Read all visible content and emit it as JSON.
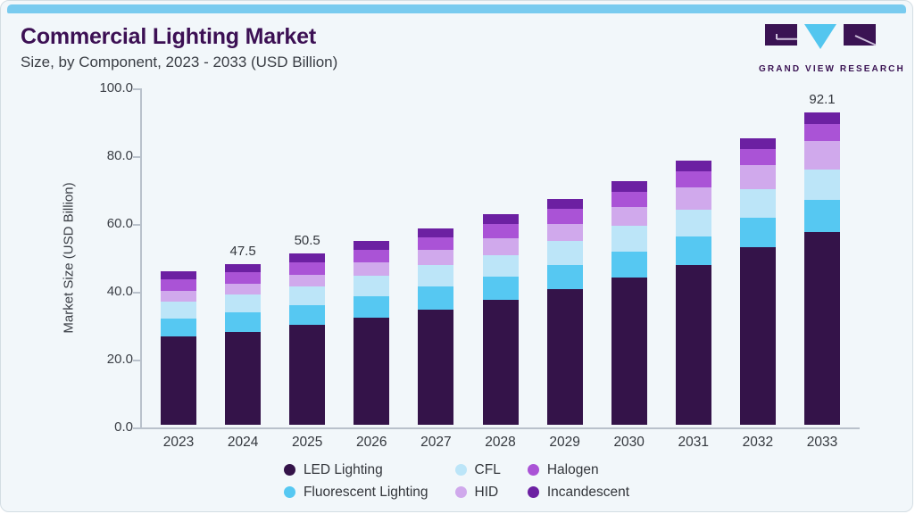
{
  "header": {
    "title": "Commercial Lighting Market",
    "subtitle": "Size, by Component, 2023 - 2033 (USD Billion)",
    "logo_text": "GRAND VIEW RESEARCH"
  },
  "colors": {
    "accent_bar": "#79cbef",
    "card_background": "#f2f7fa",
    "card_border": "#d3dde3",
    "title": "#3c1054",
    "axis": "#b9c1cb",
    "logo_purple": "#3a1353",
    "logo_blue": "#53c6ef"
  },
  "chart_data": {
    "type": "bar",
    "stacked": true,
    "title": "Commercial Lighting Market Size, by Component, 2023 - 2033 (USD Billion)",
    "categories": [
      "2023",
      "2024",
      "2025",
      "2026",
      "2027",
      "2028",
      "2029",
      "2030",
      "2031",
      "2032",
      "2033"
    ],
    "series": [
      {
        "name": "LED Lighting",
        "color": "#341349",
        "values": [
          26.1,
          27.5,
          29.5,
          31.7,
          34.0,
          36.9,
          39.9,
          43.3,
          47.2,
          52.4,
          56.8
        ]
      },
      {
        "name": "Fluorescent Lighting",
        "color": "#56c8f2",
        "values": [
          5.1,
          5.7,
          5.8,
          6.3,
          6.7,
          6.9,
          7.3,
          7.8,
          8.4,
          8.7,
          9.4
        ]
      },
      {
        "name": "CFL",
        "color": "#bce5f8",
        "values": [
          5.2,
          5.2,
          5.5,
          6.0,
          6.5,
          6.3,
          7.1,
          7.5,
          7.9,
          8.4,
          9.2
        ]
      },
      {
        "name": "HID",
        "color": "#d0a9ec",
        "values": [
          3.2,
          3.3,
          3.5,
          3.9,
          4.5,
          4.9,
          5.0,
          5.7,
          6.5,
          7.1,
          8.2
        ]
      },
      {
        "name": "Halogen",
        "color": "#aa53d6",
        "values": [
          3.2,
          3.3,
          3.5,
          3.6,
          3.5,
          4.1,
          4.4,
          4.5,
          4.7,
          4.8,
          5.1
        ]
      },
      {
        "name": "Incandescent",
        "color": "#6c20a2",
        "values": [
          2.4,
          2.5,
          2.7,
          2.7,
          2.8,
          2.9,
          3.0,
          3.0,
          3.1,
          3.1,
          3.4
        ]
      }
    ],
    "bar_total_labels": [
      "",
      "47.5",
      "50.5",
      "",
      "",
      "",
      "",
      "",
      "",
      "",
      "92.1"
    ],
    "ylabel": "Market Size (USD Billion)",
    "xlabel": "",
    "ylim": [
      0,
      100
    ],
    "yticks": [
      100,
      80,
      60,
      40,
      20,
      0
    ],
    "ytick_labels": [
      "100.0",
      "80.0",
      "60.0",
      "40.0",
      "20.0",
      "0.0"
    ],
    "grid": false,
    "legend_position": "bottom"
  }
}
